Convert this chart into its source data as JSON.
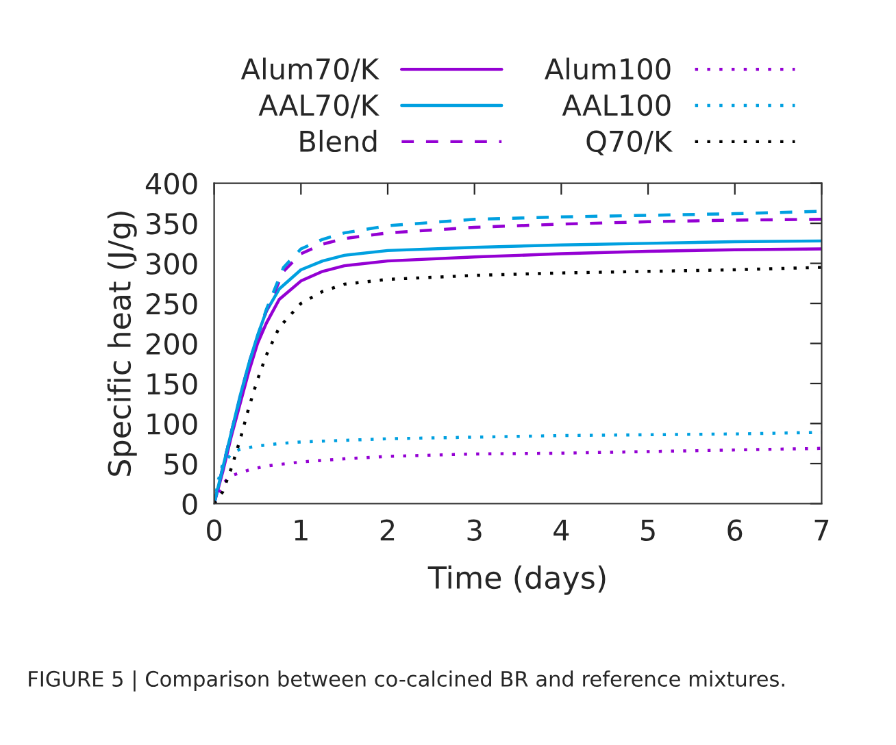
{
  "chart_data": {
    "type": "line",
    "xlabel": "Time (days)",
    "ylabel": "Specific heat (J/g)",
    "xlim": [
      0,
      7
    ],
    "xticks": [
      0,
      1,
      2,
      3,
      4,
      5,
      6,
      7
    ],
    "ylim": [
      0,
      400
    ],
    "yticks": [
      0,
      50,
      100,
      150,
      200,
      250,
      300,
      350,
      400
    ],
    "grid": false,
    "legend": "top",
    "marker": "none",
    "annotations": [
      "FIGURE 5 | Comparison between co-calcined BR and reference mixtures."
    ],
    "series": [
      {
        "name": "Alum70/K",
        "color": "#9400d3",
        "line_style": "solid",
        "x": [
          0,
          0.1,
          0.2,
          0.3,
          0.4,
          0.5,
          0.6,
          0.75,
          1,
          1.25,
          1.5,
          2,
          3,
          4,
          5,
          6,
          7
        ],
        "values": [
          0,
          40,
          85,
          125,
          165,
          200,
          225,
          255,
          278,
          290,
          297,
          303,
          308,
          312,
          315,
          317,
          318
        ]
      },
      {
        "name": "AAL70/K",
        "color": "#00a0e0",
        "line_style": "solid",
        "x": [
          0,
          0.1,
          0.2,
          0.3,
          0.4,
          0.5,
          0.6,
          0.75,
          1,
          1.25,
          1.5,
          2,
          3,
          4,
          5,
          6,
          7
        ],
        "values": [
          0,
          45,
          90,
          135,
          175,
          210,
          240,
          268,
          292,
          303,
          310,
          316,
          320,
          323,
          325,
          327,
          328
        ]
      },
      {
        "name": "Blend",
        "color": "#9400d3",
        "line_style": "dashed",
        "x": [
          0,
          0.2,
          0.4,
          0.6,
          0.8,
          1,
          1.25,
          1.5,
          2,
          3,
          4,
          5,
          6,
          7
        ],
        "values": [
          0,
          90,
          175,
          240,
          290,
          312,
          324,
          331,
          338,
          345,
          349,
          352,
          354,
          355
        ]
      },
      {
        "color": "#00a0e0",
        "line_style": "dashed",
        "x": [
          0,
          0.2,
          0.4,
          0.6,
          0.8,
          1,
          1.25,
          1.5,
          2,
          3,
          4,
          5,
          6,
          7
        ],
        "values": [
          0,
          90,
          175,
          242,
          295,
          318,
          330,
          338,
          347,
          355,
          358,
          360,
          362,
          365
        ]
      },
      {
        "name": "Alum100",
        "color": "#9400d3",
        "line_style": "dotted",
        "x": [
          0,
          0.1,
          0.2,
          0.4,
          0.6,
          1,
          1.5,
          2,
          3,
          4,
          5,
          6,
          7
        ],
        "values": [
          0,
          25,
          35,
          42,
          47,
          52,
          56,
          59,
          62,
          63,
          65,
          67,
          69
        ]
      },
      {
        "name": "AAL100",
        "color": "#00a0e0",
        "line_style": "dotted",
        "x": [
          0,
          0.05,
          0.1,
          0.2,
          0.3,
          0.5,
          0.75,
          1,
          1.5,
          2,
          3,
          4,
          5,
          6,
          7
        ],
        "values": [
          0,
          30,
          50,
          62,
          68,
          72,
          75,
          77,
          79,
          81,
          83,
          85,
          86,
          87,
          89
        ]
      },
      {
        "name": "Q70/K",
        "color": "#000000",
        "line_style": "dotted",
        "x": [
          0,
          0.1,
          0.2,
          0.3,
          0.4,
          0.5,
          0.6,
          0.75,
          1,
          1.25,
          1.5,
          2,
          3,
          4,
          5,
          6,
          7
        ],
        "values": [
          0,
          15,
          45,
          80,
          120,
          155,
          185,
          220,
          250,
          265,
          274,
          280,
          285,
          288,
          290,
          292,
          295
        ]
      }
    ]
  }
}
